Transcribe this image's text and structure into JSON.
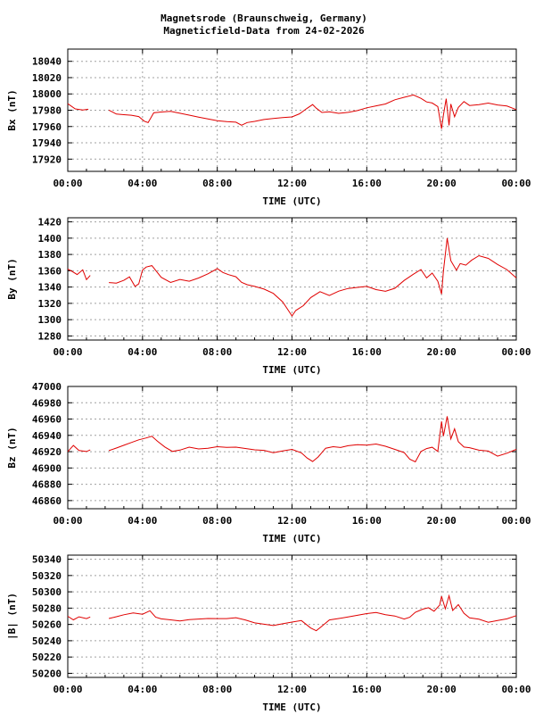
{
  "header": {
    "title": "Magnetsrode (Braunschweig, Germany)",
    "subtitle": "Magneticfield-Data from 24-02-2026"
  },
  "colors": {
    "trace": "#e00000",
    "grid": "#a0a0a0",
    "axis": "#000000"
  },
  "chart_data": [
    {
      "type": "line",
      "xlabel": "TIME (UTC)",
      "ylabel": "Bx (nT)",
      "x_ticks": [
        "00:00",
        "04:00",
        "08:00",
        "12:00",
        "16:00",
        "20:00",
        "00:00"
      ],
      "y_ticks": [
        17920,
        17940,
        17960,
        17980,
        18000,
        18020,
        18040
      ],
      "ylim": [
        17905,
        18055
      ],
      "grid": true,
      "series": [
        {
          "x": [
            0,
            0.4,
            0.8,
            1.1,
            2.2,
            2.6,
            3.0,
            3.4,
            3.8,
            4.1,
            4.3,
            4.6,
            5.0,
            5.5,
            6.0,
            6.5,
            7.0,
            7.5,
            8.0,
            8.5,
            9.0,
            9.3,
            9.6,
            10.0,
            10.5,
            11.0,
            11.5,
            12.0,
            12.4,
            12.8,
            13.1,
            13.3,
            13.6,
            14.0,
            14.5,
            15.0,
            15.5,
            16.0,
            16.5,
            17.0,
            17.5,
            18.0,
            18.5,
            18.9,
            19.2,
            19.5,
            19.8,
            20.0,
            20.1,
            20.25,
            20.4,
            20.5,
            20.7,
            20.9,
            21.2,
            21.5,
            22.0,
            22.5,
            23.0,
            23.5,
            24.0
          ],
          "y": [
            17988,
            17982,
            17981,
            17982,
            17981,
            17976,
            17975,
            17974,
            17972,
            17966,
            17964,
            17976,
            17977,
            17978,
            17976,
            17974,
            17972,
            17970,
            17968,
            17967,
            17966,
            17962,
            17965,
            17966,
            17968,
            17969,
            17970,
            17971,
            17975,
            17982,
            17987,
            17983,
            17978,
            17979,
            17977,
            17978,
            17980,
            17983,
            17985,
            17987,
            17992,
            17995,
            17998,
            17994,
            17990,
            17989,
            17985,
            17958,
            17975,
            17995,
            17962,
            17988,
            17972,
            17983,
            17990,
            17985,
            17986,
            17988,
            17986,
            17985,
            17981
          ]
        }
      ]
    },
    {
      "type": "line",
      "xlabel": "TIME (UTC)",
      "ylabel": "By (nT)",
      "x_ticks": [
        "00:00",
        "04:00",
        "08:00",
        "12:00",
        "16:00",
        "20:00",
        "00:00"
      ],
      "y_ticks": [
        1280,
        1300,
        1320,
        1340,
        1360,
        1380,
        1400,
        1420
      ],
      "ylim": [
        1275,
        1425
      ],
      "grid": true,
      "series": [
        {
          "x": [
            0,
            0.2,
            0.5,
            0.8,
            1.0,
            1.2,
            2.2,
            2.6,
            3.0,
            3.3,
            3.6,
            3.8,
            4.0,
            4.2,
            4.5,
            5.0,
            5.5,
            6.0,
            6.5,
            7.0,
            7.5,
            8.0,
            8.3,
            8.6,
            9.0,
            9.3,
            9.6,
            10.0,
            10.5,
            11.0,
            11.5,
            12.0,
            12.2,
            12.6,
            13.0,
            13.5,
            14.0,
            14.5,
            15.0,
            15.5,
            16.0,
            16.5,
            17.0,
            17.5,
            18.0,
            18.5,
            18.9,
            19.2,
            19.5,
            19.8,
            20.0,
            20.1,
            20.3,
            20.5,
            20.8,
            21.0,
            21.3,
            21.6,
            22.0,
            22.5,
            23.0,
            23.5,
            24.0
          ],
          "y": [
            1362,
            1360,
            1356,
            1362,
            1350,
            1355,
            1346,
            1345,
            1348,
            1352,
            1340,
            1343,
            1360,
            1364,
            1366,
            1352,
            1346,
            1350,
            1348,
            1352,
            1357,
            1363,
            1358,
            1355,
            1352,
            1345,
            1342,
            1340,
            1337,
            1332,
            1322,
            1305,
            1312,
            1318,
            1328,
            1335,
            1330,
            1335,
            1338,
            1339,
            1340,
            1336,
            1334,
            1338,
            1348,
            1356,
            1362,
            1352,
            1358,
            1348,
            1332,
            1360,
            1400,
            1372,
            1360,
            1368,
            1366,
            1372,
            1378,
            1375,
            1368,
            1362,
            1352
          ]
        }
      ]
    },
    {
      "type": "line",
      "xlabel": "TIME (UTC)",
      "ylabel": "Bz (nT)",
      "x_ticks": [
        "00:00",
        "04:00",
        "08:00",
        "12:00",
        "16:00",
        "20:00",
        "00:00"
      ],
      "y_ticks": [
        46860,
        46880,
        46900,
        46920,
        46940,
        46960,
        46980,
        47000
      ],
      "ylim": [
        46850,
        47000
      ],
      "grid": true,
      "series": [
        {
          "x": [
            0,
            0.3,
            0.6,
            1.0,
            1.2,
            2.2,
            2.6,
            3.0,
            3.4,
            3.8,
            4.2,
            4.5,
            4.8,
            5.2,
            5.6,
            6.0,
            6.5,
            7.0,
            7.5,
            8.0,
            8.5,
            9.0,
            9.5,
            10.0,
            10.5,
            11.0,
            11.5,
            12.0,
            12.5,
            12.8,
            13.1,
            13.4,
            13.8,
            14.2,
            14.6,
            15.0,
            15.5,
            16.0,
            16.5,
            17.0,
            17.5,
            18.0,
            18.3,
            18.6,
            18.9,
            19.2,
            19.5,
            19.8,
            20.0,
            20.1,
            20.3,
            20.5,
            20.7,
            20.9,
            21.2,
            21.5,
            22.0,
            22.5,
            23.0,
            23.5,
            24.0
          ],
          "y": [
            46920,
            46928,
            46922,
            46921,
            46923,
            46922,
            46925,
            46928,
            46931,
            46934,
            46936,
            46938,
            46932,
            46925,
            46920,
            46922,
            46926,
            46924,
            46925,
            46927,
            46926,
            46926,
            46924,
            46922,
            46921,
            46918,
            46920,
            46922,
            46918,
            46912,
            46908,
            46914,
            46925,
            46927,
            46926,
            46928,
            46929,
            46928,
            46929,
            46926,
            46922,
            46918,
            46910,
            46907,
            46920,
            46924,
            46926,
            46921,
            46958,
            46940,
            46964,
            46936,
            46948,
            46932,
            46925,
            46924,
            46921,
            46920,
            46914,
            46918,
            46923
          ]
        }
      ]
    },
    {
      "type": "line",
      "xlabel": "TIME (UTC)",
      "ylabel": "|B| (nT)",
      "x_ticks": [
        "00:00",
        "04:00",
        "08:00",
        "12:00",
        "16:00",
        "20:00",
        "00:00"
      ],
      "y_ticks": [
        50200,
        50220,
        50240,
        50260,
        50280,
        50300,
        50320,
        50340
      ],
      "ylim": [
        50195,
        50345
      ],
      "grid": true,
      "series": [
        {
          "x": [
            0,
            0.3,
            0.6,
            1.0,
            1.2,
            2.2,
            2.6,
            3.0,
            3.5,
            4.0,
            4.4,
            4.7,
            5.0,
            5.5,
            6.0,
            6.5,
            7.0,
            7.5,
            8.0,
            8.5,
            9.0,
            9.5,
            10.0,
            10.5,
            11.0,
            11.5,
            12.0,
            12.5,
            13.0,
            13.3,
            13.6,
            14.0,
            14.5,
            15.0,
            15.5,
            16.0,
            16.5,
            17.0,
            17.5,
            18.0,
            18.3,
            18.6,
            19.0,
            19.3,
            19.6,
            19.9,
            20.0,
            20.2,
            20.4,
            20.6,
            20.9,
            21.2,
            21.5,
            22.0,
            22.5,
            23.0,
            23.5,
            24.0
          ],
          "y": [
            50270,
            50266,
            50270,
            50268,
            50270,
            50268,
            50270,
            50272,
            50274,
            50272,
            50276,
            50268,
            50266,
            50265,
            50264,
            50266,
            50267,
            50268,
            50268,
            50268,
            50269,
            50266,
            50262,
            50260,
            50258,
            50260,
            50262,
            50264,
            50255,
            50252,
            50258,
            50266,
            50268,
            50270,
            50272,
            50274,
            50275,
            50272,
            50270,
            50266,
            50268,
            50274,
            50278,
            50280,
            50276,
            50284,
            50295,
            50280,
            50296,
            50278,
            50285,
            50274,
            50268,
            50266,
            50262,
            50264,
            50266,
            50270
          ]
        }
      ]
    }
  ]
}
